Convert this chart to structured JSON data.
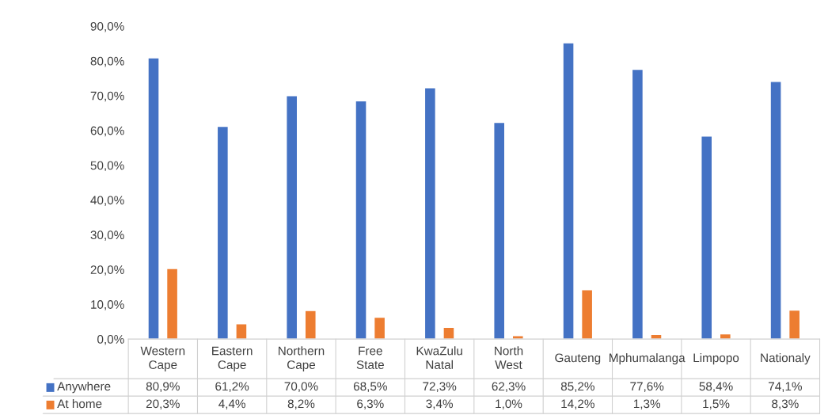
{
  "chart_data": {
    "type": "bar",
    "categories": [
      "Western Cape",
      "Eastern Cape",
      "Northern Cape",
      "Free State",
      "KwaZulu Natal",
      "North West",
      "Gauteng",
      "Mphumalanga",
      "Limpopo",
      "Nationaly"
    ],
    "series": [
      {
        "name": "Anywhere",
        "color": "#4472c4",
        "values": [
          80.9,
          61.2,
          70.0,
          68.5,
          72.3,
          62.3,
          85.2,
          77.6,
          58.4,
          74.1
        ],
        "value_labels": [
          "80,9%",
          "61,2%",
          "70,0%",
          "68,5%",
          "72,3%",
          "62,3%",
          "85,2%",
          "77,6%",
          "58,4%",
          "74,1%"
        ]
      },
      {
        "name": "At home",
        "color": "#ed7d31",
        "values": [
          20.3,
          4.4,
          8.2,
          6.3,
          3.4,
          1.0,
          14.2,
          1.3,
          1.5,
          8.3
        ],
        "value_labels": [
          "20,3%",
          "4,4%",
          "8,2%",
          "6,3%",
          "3,4%",
          "1,0%",
          "14,2%",
          "1,3%",
          "1,5%",
          "8,3%"
        ]
      }
    ],
    "ylim": [
      0,
      90
    ],
    "yticks": [
      {
        "value": 0,
        "label": "0,0%"
      },
      {
        "value": 10,
        "label": "10,0%"
      },
      {
        "value": 20,
        "label": "20,0%"
      },
      {
        "value": 30,
        "label": "30,0%"
      },
      {
        "value": 40,
        "label": "40,0%"
      },
      {
        "value": 50,
        "label": "50,0%"
      },
      {
        "value": 60,
        "label": "60,0%"
      },
      {
        "value": 70,
        "label": "70,0%"
      },
      {
        "value": 80,
        "label": "80,0%"
      },
      {
        "value": 90,
        "label": "90,0%"
      }
    ],
    "grid": false,
    "legend": "bottom"
  }
}
